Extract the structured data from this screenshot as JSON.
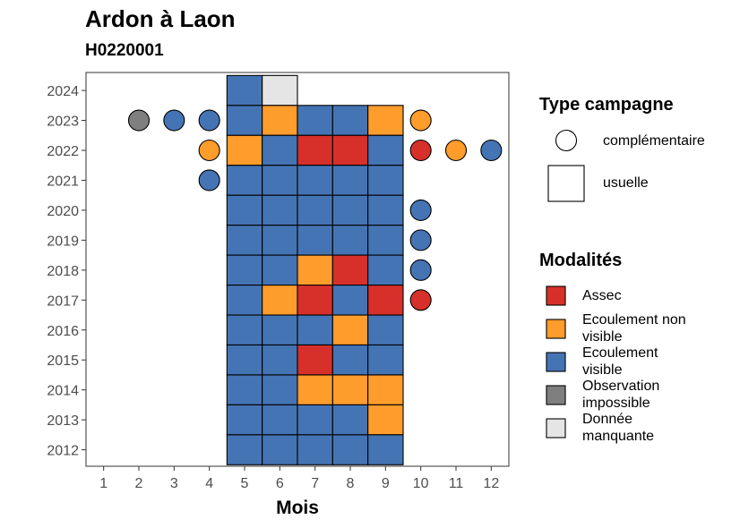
{
  "title": "Ardon à Laon",
  "subtitle": "H0220001",
  "chart_data": {
    "type": "heatmap",
    "xlabel": "Mois",
    "ylabel": "",
    "x_ticks": [
      "1",
      "2",
      "3",
      "4",
      "5",
      "6",
      "7",
      "8",
      "9",
      "10",
      "11",
      "12"
    ],
    "y_ticks": [
      "2012",
      "2013",
      "2014",
      "2015",
      "2016",
      "2017",
      "2018",
      "2019",
      "2020",
      "2021",
      "2022",
      "2023",
      "2024"
    ],
    "xlim": [
      0.5,
      12.5
    ],
    "ylim": [
      2011.45,
      2024.6
    ],
    "grid": false,
    "legend_position": "right",
    "colors": {
      "Assec": "#d7302a",
      "Ecoulement non visible": "#fe9c2c",
      "Ecoulement visible": "#4574b4",
      "Observation impossible": "#7f7f7f",
      "Donnée manquante": "#e5e5e5"
    },
    "usuelle": [
      {
        "year": 2024,
        "cells": [
          "Ecoulement visible",
          "Donnée manquante",
          null,
          null,
          null
        ]
      },
      {
        "year": 2023,
        "cells": [
          "Ecoulement visible",
          "Ecoulement non visible",
          "Ecoulement visible",
          "Ecoulement visible",
          "Ecoulement non visible"
        ]
      },
      {
        "year": 2022,
        "cells": [
          "Ecoulement non visible",
          "Ecoulement visible",
          "Assec",
          "Assec",
          "Ecoulement visible"
        ]
      },
      {
        "year": 2021,
        "cells": [
          "Ecoulement visible",
          "Ecoulement visible",
          "Ecoulement visible",
          "Ecoulement visible",
          "Ecoulement visible"
        ]
      },
      {
        "year": 2020,
        "cells": [
          "Ecoulement visible",
          "Ecoulement visible",
          "Ecoulement visible",
          "Ecoulement visible",
          "Ecoulement visible"
        ]
      },
      {
        "year": 2019,
        "cells": [
          "Ecoulement visible",
          "Ecoulement visible",
          "Ecoulement visible",
          "Ecoulement visible",
          "Ecoulement visible"
        ]
      },
      {
        "year": 2018,
        "cells": [
          "Ecoulement visible",
          "Ecoulement visible",
          "Ecoulement non visible",
          "Assec",
          "Ecoulement visible"
        ]
      },
      {
        "year": 2017,
        "cells": [
          "Ecoulement visible",
          "Ecoulement non visible",
          "Assec",
          "Ecoulement visible",
          "Assec"
        ]
      },
      {
        "year": 2016,
        "cells": [
          "Ecoulement visible",
          "Ecoulement visible",
          "Ecoulement visible",
          "Ecoulement non visible",
          "Ecoulement visible"
        ]
      },
      {
        "year": 2015,
        "cells": [
          "Ecoulement visible",
          "Ecoulement visible",
          "Assec",
          "Ecoulement visible",
          "Ecoulement visible"
        ]
      },
      {
        "year": 2014,
        "cells": [
          "Ecoulement visible",
          "Ecoulement visible",
          "Ecoulement non visible",
          "Ecoulement non visible",
          "Ecoulement non visible"
        ]
      },
      {
        "year": 2013,
        "cells": [
          "Ecoulement visible",
          "Ecoulement visible",
          "Ecoulement visible",
          "Ecoulement visible",
          "Ecoulement non visible"
        ]
      },
      {
        "year": 2012,
        "cells": [
          "Ecoulement visible",
          "Ecoulement visible",
          "Ecoulement visible",
          "Ecoulement visible",
          "Ecoulement visible"
        ]
      }
    ],
    "usuelle_months": [
      5,
      6,
      7,
      8,
      9
    ],
    "complementaire": [
      {
        "year": 2023,
        "month": 2,
        "modalite": "Observation impossible"
      },
      {
        "year": 2023,
        "month": 3,
        "modalite": "Ecoulement visible"
      },
      {
        "year": 2023,
        "month": 4,
        "modalite": "Ecoulement visible"
      },
      {
        "year": 2023,
        "month": 10,
        "modalite": "Ecoulement non visible"
      },
      {
        "year": 2022,
        "month": 4,
        "modalite": "Ecoulement non visible"
      },
      {
        "year": 2022,
        "month": 10,
        "modalite": "Assec"
      },
      {
        "year": 2022,
        "month": 11,
        "modalite": "Ecoulement non visible"
      },
      {
        "year": 2022,
        "month": 12,
        "modalite": "Ecoulement visible"
      },
      {
        "year": 2021,
        "month": 4,
        "modalite": "Ecoulement visible"
      },
      {
        "year": 2020,
        "month": 10,
        "modalite": "Ecoulement visible"
      },
      {
        "year": 2019,
        "month": 10,
        "modalite": "Ecoulement visible"
      },
      {
        "year": 2018,
        "month": 10,
        "modalite": "Ecoulement visible"
      },
      {
        "year": 2017,
        "month": 10,
        "modalite": "Assec"
      }
    ]
  },
  "legend": {
    "type_title": "Type campagne",
    "type_items": [
      "complémentaire",
      "usuelle"
    ],
    "modalites_title": "Modalités",
    "modalites_items": [
      {
        "label": "Assec",
        "color": "#d7302a"
      },
      {
        "label": "Ecoulement non visible",
        "color": "#fe9c2c"
      },
      {
        "label": "Ecoulement visible",
        "color": "#4574b4"
      },
      {
        "label": "Observation impossible",
        "color": "#7f7f7f"
      },
      {
        "label": "Donnée manquante",
        "color": "#e5e5e5"
      }
    ]
  }
}
